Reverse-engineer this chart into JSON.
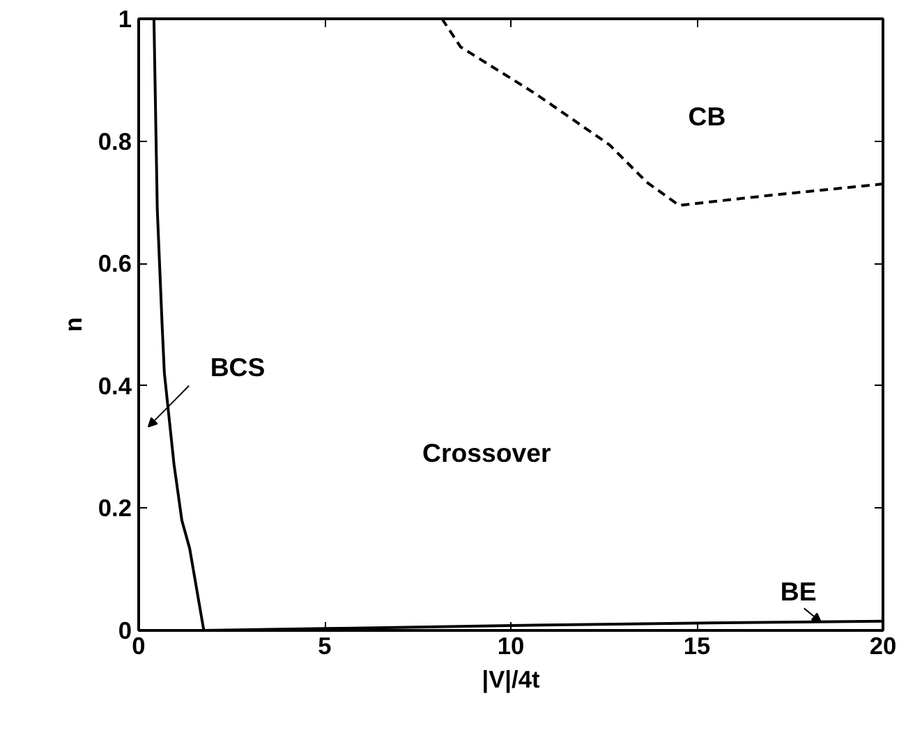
{
  "chart_data": {
    "type": "line",
    "xlabel": "|V|/4t",
    "ylabel": "n",
    "xlim": [
      0,
      20
    ],
    "ylim": [
      0,
      1
    ],
    "xticks": [
      0,
      5,
      10,
      15,
      20
    ],
    "yticks": [
      0,
      0.2,
      0.4,
      0.6,
      0.8,
      1
    ],
    "grid": false,
    "marker": "none",
    "series": [
      {
        "color": "#000000",
        "line_style": "solid",
        "x": [
          0.41,
          0.5,
          0.63,
          0.69,
          0.95,
          1.16,
          1.37,
          1.75
        ],
        "values": [
          1,
          0.688,
          0.499,
          0.421,
          0.271,
          0.18,
          0.134,
          0
        ]
      },
      {
        "color": "#000000",
        "line_style": "solid",
        "x": [
          1.75,
          5,
          10,
          15,
          20
        ],
        "values": [
          0,
          0.003,
          0.008,
          0.012,
          0.015
        ]
      },
      {
        "color": "#000000",
        "line_style": "dashed",
        "x": [
          8.15,
          8.65,
          10.65,
          12.65,
          13.65,
          14.52,
          16.9,
          20
        ],
        "values": [
          1,
          0.954,
          0.878,
          0.794,
          0.733,
          0.695,
          0.711,
          0.73
        ]
      }
    ],
    "annotations": [
      "BCS",
      {
        "text": "BE",
        "x": 18.33,
        "y": 0.014
      },
      "Crossover",
      "CB"
    ]
  }
}
